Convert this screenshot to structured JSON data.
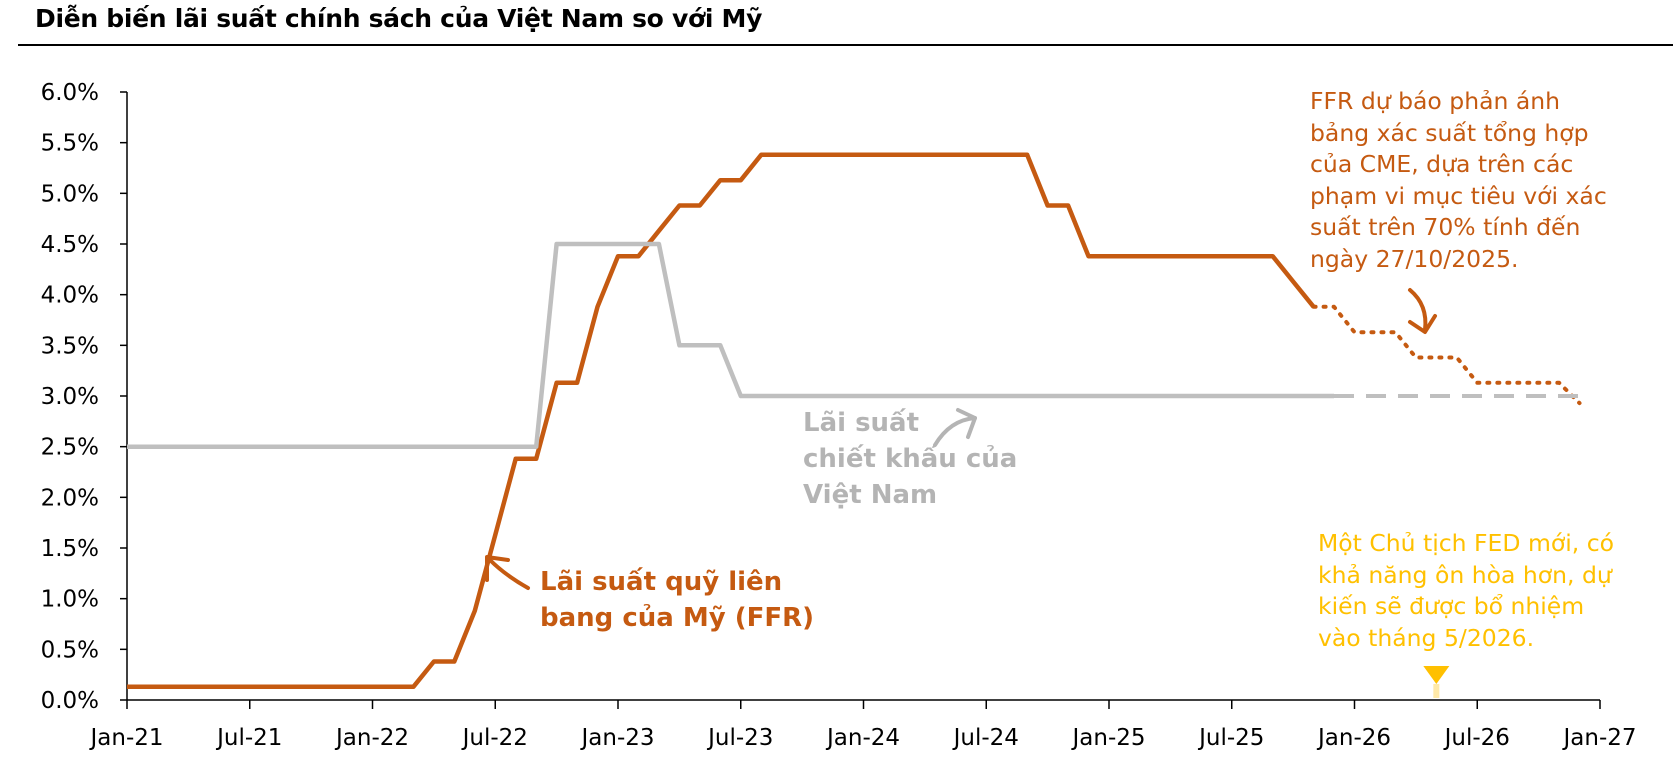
{
  "chart_data": {
    "type": "line",
    "title": "Diễn biến lãi suất chính sách của Việt Nam so với Mỹ",
    "ylim": [
      0,
      6
    ],
    "y_ticks": [
      "0.0%",
      "0.5%",
      "1.0%",
      "1.5%",
      "2.0%",
      "2.5%",
      "3.0%",
      "3.5%",
      "4.0%",
      "4.5%",
      "5.0%",
      "5.5%",
      "6.0%"
    ],
    "x_ticks": [
      "Jan-21",
      "Jul-21",
      "Jan-22",
      "Jul-22",
      "Jan-23",
      "Jul-23",
      "Jan-24",
      "Jul-24",
      "Jan-25",
      "Jul-25",
      "Jan-26",
      "Jul-26",
      "Jan-27"
    ],
    "xlim": [
      "2021-01",
      "2027-01"
    ],
    "grid": false,
    "series": [
      {
        "name": "Lãi suất quỹ liên bang của Mỹ (FFR)",
        "color": "#c55a11",
        "style": "solid",
        "points": [
          [
            "2021-01",
            0.13
          ],
          [
            "2022-03",
            0.13
          ],
          [
            "2022-04",
            0.38
          ],
          [
            "2022-05",
            0.38
          ],
          [
            "2022-06",
            0.88
          ],
          [
            "2022-07",
            1.63
          ],
          [
            "2022-08",
            2.38
          ],
          [
            "2022-09",
            2.38
          ],
          [
            "2022-10",
            3.13
          ],
          [
            "2022-11",
            3.13
          ],
          [
            "2022-12",
            3.88
          ],
          [
            "2023-01",
            4.38
          ],
          [
            "2023-02",
            4.38
          ],
          [
            "2023-03",
            4.63
          ],
          [
            "2023-04",
            4.88
          ],
          [
            "2023-05",
            4.88
          ],
          [
            "2023-06",
            5.13
          ],
          [
            "2023-07",
            5.13
          ],
          [
            "2023-08",
            5.38
          ],
          [
            "2024-09",
            5.38
          ],
          [
            "2024-10",
            4.88
          ],
          [
            "2024-11",
            4.88
          ],
          [
            "2024-12",
            4.38
          ],
          [
            "2025-09",
            4.38
          ],
          [
            "2025-10",
            4.13
          ],
          [
            "2025-11",
            3.88
          ]
        ]
      },
      {
        "name": "FFR dự báo",
        "color": "#c55a11",
        "style": "dotted",
        "points": [
          [
            "2025-11",
            3.88
          ],
          [
            "2025-12",
            3.88
          ],
          [
            "2026-01",
            3.63
          ],
          [
            "2026-03",
            3.63
          ],
          [
            "2026-04",
            3.38
          ],
          [
            "2026-06",
            3.38
          ],
          [
            "2026-07",
            3.13
          ],
          [
            "2026-11",
            3.13
          ],
          [
            "2026-12",
            2.93
          ]
        ]
      },
      {
        "name": "Lãi suất chiết khấu của Việt Nam",
        "color": "#bfbfbf",
        "style": "solid",
        "points": [
          [
            "2021-01",
            2.5
          ],
          [
            "2022-09",
            2.5
          ],
          [
            "2022-10",
            4.5
          ],
          [
            "2023-03",
            4.5
          ],
          [
            "2023-04",
            3.5
          ],
          [
            "2023-06",
            3.5
          ],
          [
            "2023-07",
            3.0
          ],
          [
            "2025-12",
            3.0
          ]
        ]
      },
      {
        "name": "Lãi suất chiết khấu của Việt Nam (dự báo)",
        "color": "#bfbfbf",
        "style": "dashed",
        "points": [
          [
            "2025-12",
            3.0
          ],
          [
            "2026-12",
            3.0
          ]
        ]
      }
    ],
    "annotations": {
      "vn_label": [
        "Lãi suất",
        "chiết khấu của",
        "Việt Nam"
      ],
      "ffr_label": [
        "Lãi suất quỹ liên",
        "bang của Mỹ (FFR)"
      ],
      "forecast_note": [
        "FFR dự báo phản ánh",
        "bảng xác suất tổng hợp",
        "của CME, dựa trên các",
        "phạm vi mục tiêu với xác",
        "suất trên 70% tính đến",
        "ngày 27/10/2025."
      ],
      "fed_note": [
        "Một Chủ tịch FED mới, có",
        "khả năng ôn hòa hơn, dự",
        "kiến sẽ được bổ nhiệm",
        "vào tháng 5/2026."
      ],
      "fed_marker_date": "2026-05"
    }
  }
}
